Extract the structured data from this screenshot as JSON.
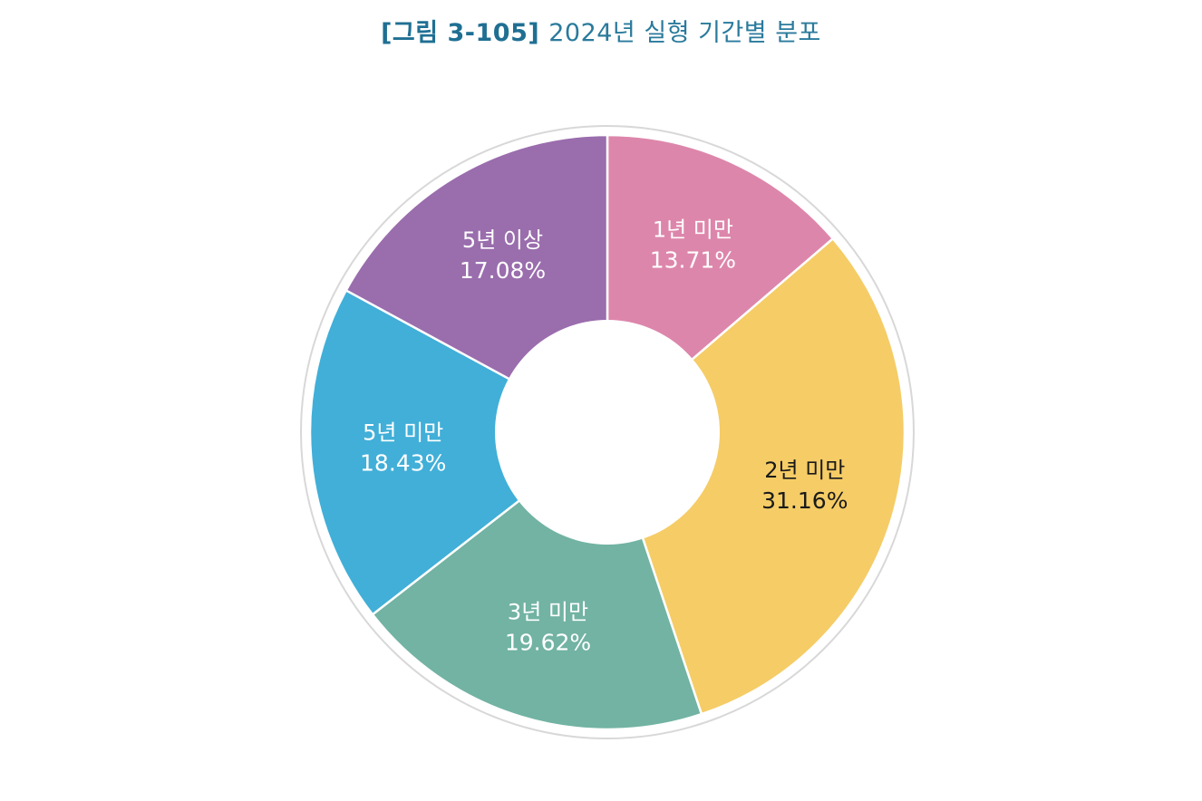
{
  "figure": {
    "number": "[그림 3-105]",
    "caption": "2024년 실형 기간별 분포"
  },
  "chart_data": {
    "type": "pie",
    "donut": true,
    "title": "[그림 3-105] 2024년 실형 기간별 분포",
    "slices": [
      {
        "label": "1년 미만",
        "value": 13.71,
        "value_text": "13.71%",
        "color": "#dd86ab",
        "text_color": "#ffffff"
      },
      {
        "label": "2년 미만",
        "value": 31.16,
        "value_text": "31.16%",
        "color": "#f5cc66",
        "text_color": "#1a1a1a"
      },
      {
        "label": "3년 미만",
        "value": 19.62,
        "value_text": "19.62%",
        "color": "#72b3a3",
        "text_color": "#ffffff"
      },
      {
        "label": "5년 미만",
        "value": 18.43,
        "value_text": "18.43%",
        "color": "#41afd8",
        "text_color": "#ffffff"
      },
      {
        "label": "5년 이상",
        "value": 17.08,
        "value_text": "17.08%",
        "color": "#9a6dad",
        "text_color": "#ffffff"
      }
    ],
    "start": "12 o'clock",
    "direction": "clockwise",
    "legend": "none"
  }
}
